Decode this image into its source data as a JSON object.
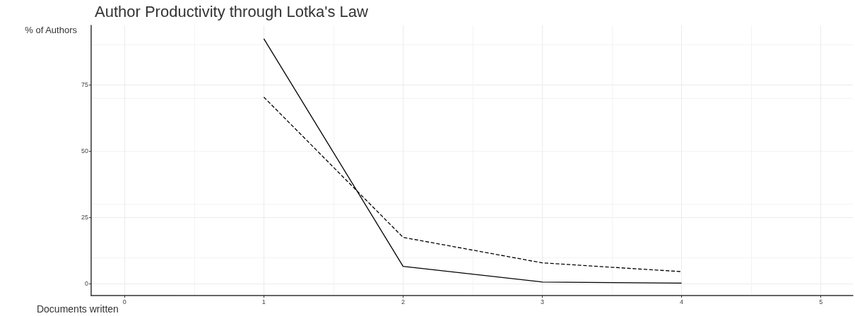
{
  "chart_data": {
    "type": "line",
    "title": "Author Productivity through Lotka's Law",
    "xlabel": "Documents written",
    "ylabel": "% of Authors",
    "x": [
      1,
      2,
      3,
      4
    ],
    "series": [
      {
        "color": "#000000",
        "line_style": "solid",
        "values": [
          92.3,
          6.6,
          0.7,
          0.3
        ]
      },
      {
        "color": "#000000",
        "line_style": "dashed",
        "values": [
          70.3,
          17.5,
          7.9,
          4.6
        ]
      }
    ],
    "xlim": [
      -0.24,
      5.23
    ],
    "xticks": [
      0,
      1,
      2,
      3,
      4,
      5
    ],
    "ylim": [
      -4.4,
      97.3
    ],
    "yticks": [
      0,
      25,
      50,
      75
    ],
    "grid": true,
    "marker": "none"
  }
}
